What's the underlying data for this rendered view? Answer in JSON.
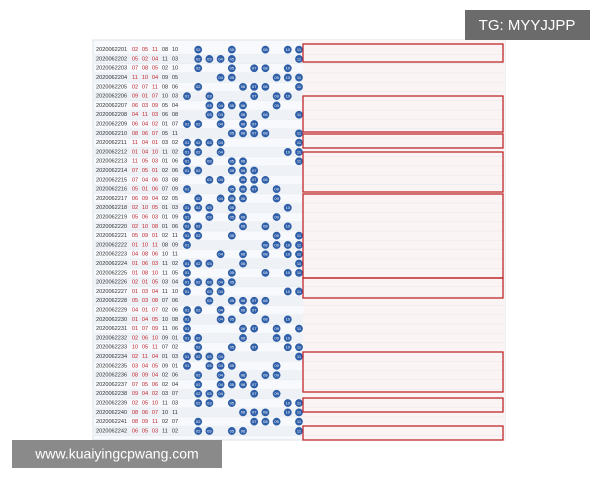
{
  "header": {
    "watermark": "TG: MYYJJPP"
  },
  "footer": {
    "site": "www.kuaiyingcpwang.com"
  },
  "table": {
    "rows": [
      {
        "period": "2020062201",
        "numbers": [
          "02",
          "05",
          "11",
          "08",
          "10"
        ]
      },
      {
        "period": "2020062202",
        "numbers": [
          "05",
          "02",
          "04",
          "11",
          "03"
        ]
      },
      {
        "period": "2020062203",
        "numbers": [
          "07",
          "08",
          "05",
          "02",
          "10"
        ]
      },
      {
        "period": "2020062204",
        "numbers": [
          "11",
          "10",
          "04",
          "09",
          "05"
        ]
      },
      {
        "period": "2020062205",
        "numbers": [
          "02",
          "07",
          "11",
          "08",
          "06"
        ]
      },
      {
        "period": "2020062206",
        "numbers": [
          "09",
          "01",
          "07",
          "10",
          "03"
        ]
      },
      {
        "period": "2020062207",
        "numbers": [
          "06",
          "03",
          "09",
          "05",
          "04"
        ]
      },
      {
        "period": "2020062208",
        "numbers": [
          "04",
          "11",
          "03",
          "06",
          "08"
        ]
      },
      {
        "period": "2020062209",
        "numbers": [
          "06",
          "04",
          "02",
          "01",
          "07"
        ]
      },
      {
        "period": "2020062210",
        "numbers": [
          "08",
          "06",
          "07",
          "05",
          "11"
        ]
      },
      {
        "period": "2020062211",
        "numbers": [
          "11",
          "04",
          "01",
          "03",
          "02"
        ]
      },
      {
        "period": "2020062212",
        "numbers": [
          "01",
          "04",
          "10",
          "11",
          "02"
        ]
      },
      {
        "period": "2020062213",
        "numbers": [
          "11",
          "05",
          "03",
          "01",
          "06"
        ]
      },
      {
        "period": "2020062214",
        "numbers": [
          "07",
          "05",
          "01",
          "02",
          "06"
        ]
      },
      {
        "period": "2020062215",
        "numbers": [
          "07",
          "04",
          "06",
          "03",
          "08"
        ]
      },
      {
        "period": "2020062216",
        "numbers": [
          "05",
          "01",
          "06",
          "07",
          "09"
        ]
      },
      {
        "period": "2020062217",
        "numbers": [
          "06",
          "09",
          "04",
          "02",
          "05"
        ]
      },
      {
        "period": "2020062218",
        "numbers": [
          "02",
          "10",
          "05",
          "01",
          "03"
        ]
      },
      {
        "period": "2020062219",
        "numbers": [
          "05",
          "06",
          "03",
          "01",
          "09"
        ]
      },
      {
        "period": "2020062220",
        "numbers": [
          "02",
          "10",
          "08",
          "01",
          "06"
        ]
      },
      {
        "period": "2020062221",
        "numbers": [
          "05",
          "09",
          "01",
          "02",
          "11"
        ]
      },
      {
        "period": "2020062222",
        "numbers": [
          "01",
          "10",
          "11",
          "08",
          "09"
        ]
      },
      {
        "period": "2020062223",
        "numbers": [
          "04",
          "08",
          "06",
          "10",
          "11"
        ]
      },
      {
        "period": "2020062224",
        "numbers": [
          "01",
          "06",
          "03",
          "11",
          "02"
        ]
      },
      {
        "period": "2020062225",
        "numbers": [
          "01",
          "08",
          "10",
          "11",
          "05"
        ]
      },
      {
        "period": "2020062226",
        "numbers": [
          "02",
          "01",
          "05",
          "03",
          "04"
        ]
      },
      {
        "period": "2020062227",
        "numbers": [
          "01",
          "03",
          "04",
          "11",
          "10"
        ]
      },
      {
        "period": "2020062228",
        "numbers": [
          "05",
          "03",
          "08",
          "07",
          "06"
        ]
      },
      {
        "period": "2020062229",
        "numbers": [
          "04",
          "01",
          "07",
          "02",
          "06"
        ]
      },
      {
        "period": "2020062230",
        "numbers": [
          "01",
          "04",
          "05",
          "10",
          "08"
        ]
      },
      {
        "period": "2020062231",
        "numbers": [
          "01",
          "07",
          "09",
          "11",
          "06"
        ]
      },
      {
        "period": "2020062232",
        "numbers": [
          "02",
          "06",
          "10",
          "09",
          "01"
        ]
      },
      {
        "period": "2020062233",
        "numbers": [
          "10",
          "05",
          "11",
          "07",
          "02"
        ]
      },
      {
        "period": "2020062234",
        "numbers": [
          "02",
          "11",
          "04",
          "01",
          "03"
        ]
      },
      {
        "period": "2020062235",
        "numbers": [
          "03",
          "04",
          "05",
          "09",
          "01"
        ]
      },
      {
        "period": "2020062236",
        "numbers": [
          "08",
          "09",
          "04",
          "02",
          "06"
        ]
      },
      {
        "period": "2020062237",
        "numbers": [
          "07",
          "05",
          "06",
          "02",
          "04"
        ]
      },
      {
        "period": "2020062238",
        "numbers": [
          "09",
          "04",
          "02",
          "03",
          "07"
        ]
      },
      {
        "period": "2020062239",
        "numbers": [
          "02",
          "05",
          "10",
          "11",
          "03"
        ]
      },
      {
        "period": "2020062240",
        "numbers": [
          "08",
          "06",
          "07",
          "10",
          "11"
        ]
      },
      {
        "period": "2020062241",
        "numbers": [
          "08",
          "09",
          "11",
          "02",
          "07"
        ]
      },
      {
        "period": "2020062242",
        "numbers": [
          "06",
          "05",
          "03",
          "11",
          "02"
        ]
      }
    ]
  }
}
